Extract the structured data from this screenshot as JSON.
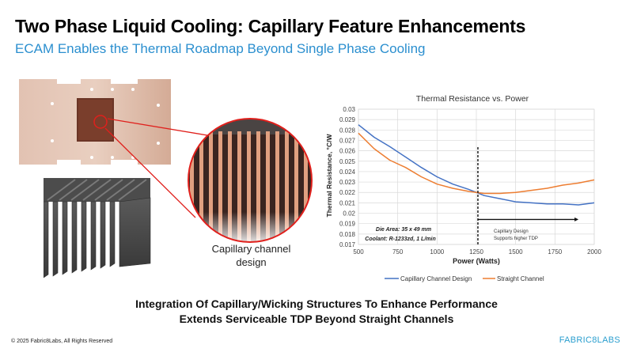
{
  "slide": {
    "title": "Two Phase Liquid Cooling: Capillary Feature Enhancements",
    "subtitle": "ECAM Enables the Thermal Roadmap Beyond Single Phase Cooling",
    "image_caption_line1": "Capillary channel",
    "image_caption_line2": "design",
    "bottom_line1": "Integration Of Capillary/Wicking Structures To Enhance Performance",
    "bottom_line2": "Extends Serviceable TDP Beyond Straight Channels",
    "copyright": "© 2025 Fabric8Labs, All Rights Reserved",
    "logo_bold": "FABRIC8",
    "logo_light": "LABS",
    "colors": {
      "subtitle": "#2b8fcf",
      "capillary_series": "#4472c4",
      "straight_series": "#ed7d31",
      "callout_red": "#e0201c",
      "logo": "#2b9fcf"
    }
  },
  "chart_data": {
    "type": "line",
    "title": "Thermal Resistance vs. Power",
    "xlabel": "Power  (Watts)",
    "ylabel": "Thermal Resistance, °C/W",
    "xlim": [
      500,
      2000
    ],
    "ylim": [
      0.017,
      0.03
    ],
    "x_ticks": [
      "500",
      "750",
      "1000",
      "1250",
      "1500",
      "1750",
      "2000"
    ],
    "y_ticks": [
      "0.017",
      "0.018",
      "0.019",
      "0.02",
      "0.021",
      "0.022",
      "0.023",
      "0.024",
      "0.025",
      "0.026",
      "0.027",
      "0.028",
      "0.029",
      "0.03"
    ],
    "grid": true,
    "legend_position": "bottom",
    "x": [
      500,
      600,
      700,
      800,
      900,
      1000,
      1100,
      1200,
      1250,
      1300,
      1400,
      1500,
      1600,
      1700,
      1800,
      1900,
      2000
    ],
    "series": [
      {
        "name": "Capillary Channel Design",
        "color": "#4472c4",
        "values": [
          0.0285,
          0.0273,
          0.0264,
          0.0254,
          0.0244,
          0.0235,
          0.0228,
          0.0223,
          0.022,
          0.0217,
          0.0214,
          0.0211,
          0.021,
          0.0209,
          0.0209,
          0.0208,
          0.021
        ]
      },
      {
        "name": "Straight Channel",
        "color": "#ed7d31",
        "values": [
          0.0277,
          0.0262,
          0.0251,
          0.0244,
          0.0235,
          0.0228,
          0.0224,
          0.0221,
          0.022,
          0.0219,
          0.0219,
          0.022,
          0.0222,
          0.0224,
          0.0227,
          0.0229,
          0.0232
        ]
      }
    ],
    "annotations": {
      "die_area": "Die Area: 35 x 49 mm",
      "coolant": "Coolant: R-1233zd, 1 L/min",
      "callout_line1": "Capillary Design",
      "callout_line2": "Supports higher TDP",
      "vertical_marker_x": 1260,
      "arrow_from_x": 1260,
      "arrow_to_x": 1900,
      "arrow_y": 0.0194
    }
  }
}
